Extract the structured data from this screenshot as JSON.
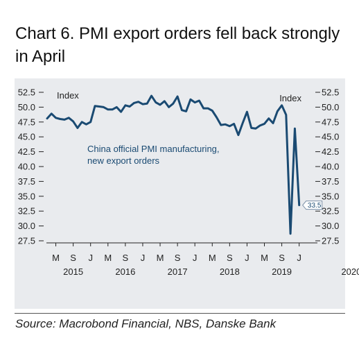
{
  "title": "Chart 6. PMI export orders fell back strongly in April",
  "source": "Source: Macrobond Financial, NBS, Danske Bank",
  "colors": {
    "line": "#1a4a72",
    "panel": "#e9ebee",
    "text": "#222222"
  },
  "chart_data": {
    "type": "line",
    "title": "Chart 6. PMI export orders fell back strongly in April",
    "left_axis_title": "Index",
    "right_axis_title": "Index",
    "ylim": [
      27.5,
      52.5
    ],
    "yticks": [
      "52.5",
      "50.0",
      "47.5",
      "45.0",
      "42.5",
      "40.0",
      "37.5",
      "35.0",
      "32.5",
      "30.0",
      "27.5"
    ],
    "month_ticks": [
      "M",
      "S",
      "J",
      "M",
      "S",
      "J",
      "M",
      "S",
      "J",
      "M",
      "S",
      "J",
      "M",
      "S",
      "J"
    ],
    "year_labels": [
      "2015",
      "2016",
      "2017",
      "2018",
      "2019",
      "2020"
    ],
    "annotation": [
      "China official PMI manufacturing,",
      "new export orders"
    ],
    "last_value_label": "33.5",
    "series": [
      {
        "name": "China official PMI manufacturing, new export orders",
        "start": "2015-01",
        "values": [
          48.1,
          48.9,
          48.2,
          48.0,
          47.9,
          48.2,
          47.6,
          46.5,
          47.5,
          47.1,
          47.5,
          50.2,
          50.1,
          50.0,
          49.6,
          49.6,
          50.0,
          49.2,
          50.3,
          50.1,
          50.7,
          50.9,
          50.5,
          50.6,
          51.9,
          50.8,
          50.4,
          51.0,
          50.0,
          50.6,
          51.8,
          49.5,
          49.3,
          51.3,
          50.8,
          51.1,
          49.8,
          49.8,
          49.4,
          48.3,
          47.0,
          47.1,
          46.8,
          47.2,
          45.3,
          47.3,
          49.2,
          46.5,
          46.4,
          46.9,
          47.2,
          48.1,
          47.3,
          49.3,
          50.3,
          48.7,
          28.7,
          46.4,
          33.5
        ]
      }
    ]
  }
}
